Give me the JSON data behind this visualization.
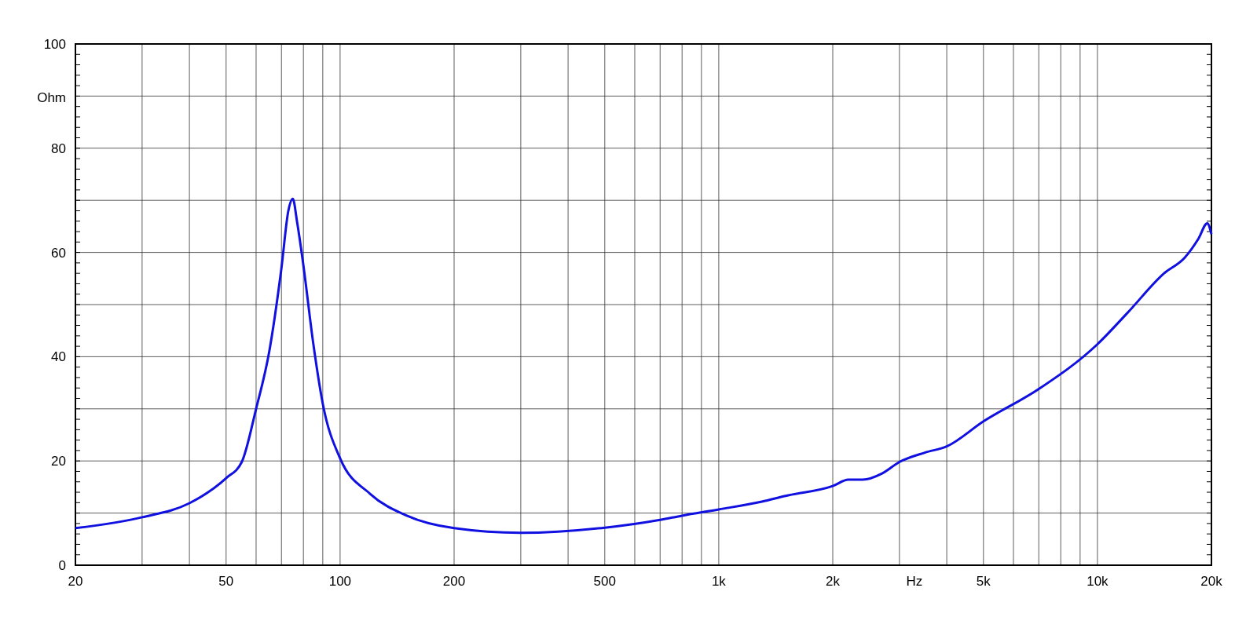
{
  "chart_data": {
    "type": "line",
    "xlabel": "Hz",
    "ylabel": "Ohm",
    "log": "x",
    "grid": true,
    "marker": "none",
    "line_style": "solid",
    "xlim": [
      20,
      20000
    ],
    "ylim": [
      0,
      100
    ],
    "xticks": [
      20,
      {
        "value": 30,
        "label": null
      },
      {
        "value": 40,
        "label": null
      },
      50,
      {
        "value": 60,
        "label": null
      },
      {
        "value": 70,
        "label": null
      },
      {
        "value": 80,
        "label": null
      },
      {
        "value": 90,
        "label": null
      },
      100,
      200,
      {
        "value": 300,
        "label": null
      },
      {
        "value": 400,
        "label": null
      },
      500,
      {
        "value": 600,
        "label": null
      },
      {
        "value": 700,
        "label": null
      },
      {
        "value": 800,
        "label": null
      },
      {
        "value": 900,
        "label": null
      },
      {
        "value": 1000,
        "label": "1k"
      },
      {
        "value": 2000,
        "label": "2k"
      },
      {
        "value": 3000,
        "label": null
      },
      {
        "value": 4000,
        "label": null
      },
      {
        "value": 5000,
        "label": "5k"
      },
      {
        "value": 6000,
        "label": null
      },
      {
        "value": 7000,
        "label": null
      },
      {
        "value": 8000,
        "label": null
      },
      {
        "value": 9000,
        "label": null
      },
      {
        "value": 10000,
        "label": "10k"
      },
      {
        "value": 20000,
        "label": "20k"
      }
    ],
    "yticks": [
      0,
      {
        "value": 10,
        "label": null
      },
      20,
      {
        "value": 30,
        "label": null
      },
      40,
      {
        "value": 50,
        "label": null
      },
      60,
      {
        "value": 70,
        "label": null
      },
      80,
      {
        "value": 90,
        "label": null
      },
      100
    ],
    "series": [
      {
        "color": "#1010e0",
        "x": [
          20,
          30,
          40,
          50,
          55,
          60,
          65,
          70,
          73,
          75,
          77,
          80,
          85,
          90,
          100,
          120,
          150,
          200,
          300,
          500,
          700,
          800,
          1000,
          1300,
          1500,
          2000,
          2200,
          2400,
          2700,
          3000,
          3500,
          4000,
          5000,
          7000,
          10000,
          12000,
          15000,
          17000,
          18500,
          19500,
          20000
        ],
        "values": [
          7.1,
          9.2,
          11.9,
          16.7,
          19.8,
          30,
          41,
          57,
          68,
          70.3,
          65.8,
          57.5,
          42.4,
          31,
          20.5,
          13.7,
          9.5,
          7.1,
          6.2,
          7.2,
          8.7,
          9.5,
          10.7,
          12.2,
          13.3,
          15.2,
          16.4,
          16.4,
          17.6,
          19.8,
          21.6,
          22.8,
          27.6,
          33.8,
          42.4,
          48.4,
          56,
          59,
          62.7,
          65.6,
          63.5
        ]
      }
    ]
  }
}
